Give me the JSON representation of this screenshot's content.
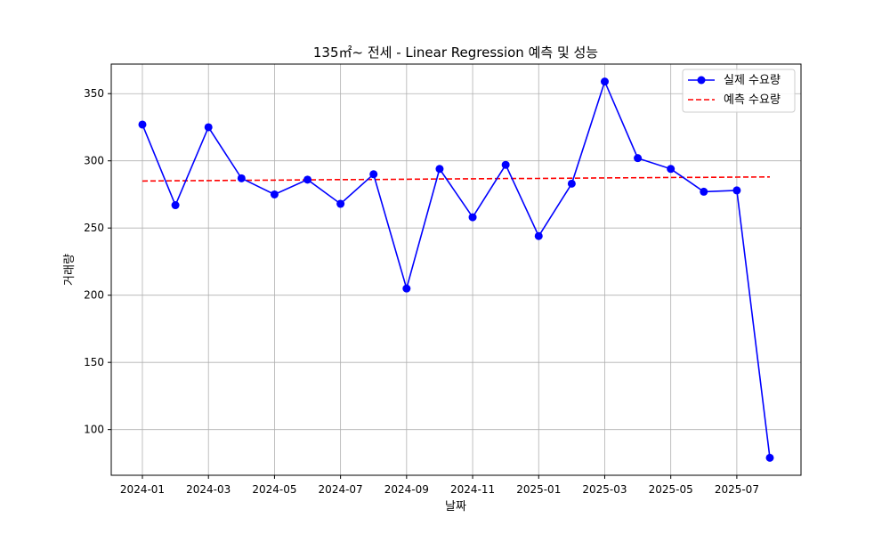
{
  "chart_data": {
    "type": "line",
    "title": "135㎡~ 전세 - Linear Regression 예측 및 성능",
    "xlabel": "날짜",
    "ylabel": "거래량",
    "x": [
      "2024-01",
      "2024-02",
      "2024-03",
      "2024-04",
      "2024-05",
      "2024-06",
      "2024-07",
      "2024-08",
      "2024-09",
      "2024-10",
      "2024-11",
      "2024-12",
      "2025-01",
      "2025-02",
      "2025-03",
      "2025-04",
      "2025-05",
      "2025-06",
      "2025-07",
      "2025-08"
    ],
    "x_ticks": [
      "2024-01",
      "2024-03",
      "2024-05",
      "2024-07",
      "2024-09",
      "2024-11",
      "2025-01",
      "2025-03",
      "2025-05",
      "2025-07"
    ],
    "y_ticks": [
      100,
      150,
      200,
      250,
      300,
      350
    ],
    "ylim": [
      66,
      372
    ],
    "grid": true,
    "legend_position": "top-right",
    "series": [
      {
        "name": "실제 수요량",
        "style": "solid-line-with-markers",
        "color": "#0000ff",
        "values": [
          327,
          267,
          325,
          287,
          275,
          286,
          268,
          290,
          205,
          294,
          258,
          297,
          244,
          283,
          359,
          302,
          294,
          277,
          278,
          79
        ]
      },
      {
        "name": "예측 수요량",
        "style": "dashed-line",
        "color": "#ff0000",
        "values": [
          285.0,
          285.2,
          285.3,
          285.5,
          285.6,
          285.8,
          286.0,
          286.1,
          286.3,
          286.5,
          286.6,
          286.8,
          286.9,
          287.1,
          287.3,
          287.4,
          287.6,
          287.7,
          287.9,
          288.0
        ]
      }
    ]
  }
}
